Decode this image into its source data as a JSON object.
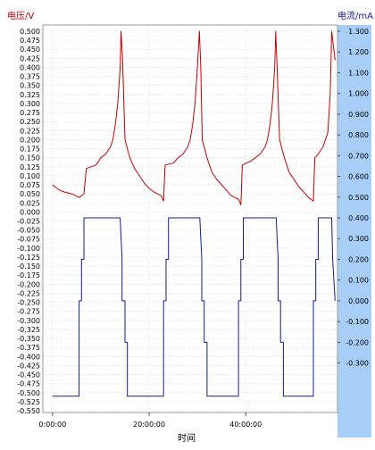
{
  "chart_data": {
    "type": "line",
    "title": "",
    "xlabel": "时间",
    "y_left_label": "电压/V",
    "y_right_label": "电流/mA",
    "x_ticks": [
      "0:00:00",
      "20:00:00",
      "40:00:00"
    ],
    "x_tick_values": [
      0,
      20,
      40
    ],
    "x_range": [
      -2,
      59
    ],
    "y_left_range": [
      -0.55,
      0.5
    ],
    "y_left_ticks": [
      "0.500",
      "0.475",
      "0.450",
      "0.425",
      "0.400",
      "0.375",
      "0.350",
      "0.325",
      "0.300",
      "0.275",
      "0.250",
      "0.225",
      "0.200",
      "0.175",
      "0.150",
      "0.125",
      "0.100",
      "0.075",
      "0.050",
      "0.025",
      "0.000",
      "-0.025",
      "-0.050",
      "-0.075",
      "-0.100",
      "-0.125",
      "-0.150",
      "-0.175",
      "-0.200",
      "-0.225",
      "-0.250",
      "-0.275",
      "-0.300",
      "-0.325",
      "-0.350",
      "-0.375",
      "-0.400",
      "-0.425",
      "-0.450",
      "-0.475",
      "-0.500",
      "-0.525",
      "-0.550"
    ],
    "y_right_range": [
      -0.53,
      1.3
    ],
    "y_right_ticks": [
      "1.300",
      "1.200",
      "1.100",
      "1.000",
      "0.900",
      "0.800",
      "0.700",
      "0.600",
      "0.500",
      "0.400",
      "0.300",
      "0.200",
      "0.100",
      "0.000",
      "-0.100",
      "-0.200",
      "-0.300"
    ],
    "grid": true,
    "series": [
      {
        "name": "电压/V",
        "axis": "left",
        "color": "#c00000",
        "x": [
          0,
          1,
          1.5,
          2.5,
          4,
          5.5,
          6.5,
          7,
          8,
          9,
          10,
          11,
          12,
          12.5,
          13,
          13.5,
          14,
          14.2,
          14.5,
          15,
          16,
          17,
          18,
          19,
          20,
          21,
          22.5,
          23,
          23.3,
          25,
          26,
          27,
          28,
          28.5,
          29,
          29.5,
          30,
          30.4,
          30.7,
          31,
          32,
          33,
          34,
          35,
          36,
          37,
          38.5,
          39,
          39.3,
          41,
          42,
          43,
          44,
          44.5,
          45,
          45.5,
          46,
          46.2,
          46.5,
          47,
          48,
          49,
          50,
          51,
          52,
          53,
          54,
          54.3,
          55,
          56,
          57,
          57.5,
          57.8,
          58.5
        ],
        "values": [
          0.075,
          0.065,
          0.06,
          0.055,
          0.05,
          0.04,
          0.05,
          0.12,
          0.125,
          0.13,
          0.15,
          0.16,
          0.18,
          0.2,
          0.24,
          0.3,
          0.4,
          0.5,
          0.42,
          0.2,
          0.15,
          0.12,
          0.1,
          0.08,
          0.065,
          0.055,
          0.045,
          0.03,
          0.13,
          0.135,
          0.15,
          0.16,
          0.18,
          0.2,
          0.24,
          0.3,
          0.4,
          0.5,
          0.4,
          0.2,
          0.15,
          0.11,
          0.09,
          0.075,
          0.06,
          0.045,
          0.035,
          0.02,
          0.13,
          0.14,
          0.15,
          0.16,
          0.18,
          0.2,
          0.24,
          0.3,
          0.4,
          0.5,
          0.4,
          0.2,
          0.15,
          0.11,
          0.09,
          0.07,
          0.055,
          0.04,
          0.03,
          0.15,
          0.16,
          0.18,
          0.22,
          0.33,
          0.5,
          0.42
        ]
      },
      {
        "name": "电流/mA",
        "axis": "right",
        "color": "#1a1a8c",
        "x": [
          0,
          5.5,
          5.5,
          6,
          6,
          6.5,
          6.5,
          14,
          14.4,
          14.4,
          15,
          15,
          15.5,
          15.5,
          23,
          23,
          23.5,
          23.5,
          24,
          24,
          30.5,
          30.9,
          30.9,
          31.4,
          31.4,
          32,
          32,
          38.5,
          38.5,
          39,
          39,
          39.5,
          39.5,
          46.3,
          46.7,
          46.7,
          47.2,
          47.2,
          47.8,
          47.8,
          54,
          54,
          54.5,
          54.5,
          55,
          55,
          57.8,
          58,
          58.5
        ],
        "values": [
          -0.46,
          -0.46,
          0.0,
          0.0,
          0.2,
          0.2,
          0.4,
          0.4,
          0.2,
          0.0,
          0.0,
          -0.2,
          -0.2,
          -0.46,
          -0.46,
          0.0,
          0.0,
          0.2,
          0.2,
          0.4,
          0.4,
          0.2,
          0.0,
          0.0,
          -0.2,
          -0.2,
          -0.46,
          -0.46,
          0.0,
          0.0,
          0.2,
          0.2,
          0.4,
          0.4,
          0.2,
          0.0,
          0.0,
          -0.2,
          -0.2,
          -0.46,
          -0.46,
          0.0,
          0.0,
          0.2,
          0.2,
          0.4,
          0.4,
          0.2,
          0.0
        ]
      }
    ]
  }
}
